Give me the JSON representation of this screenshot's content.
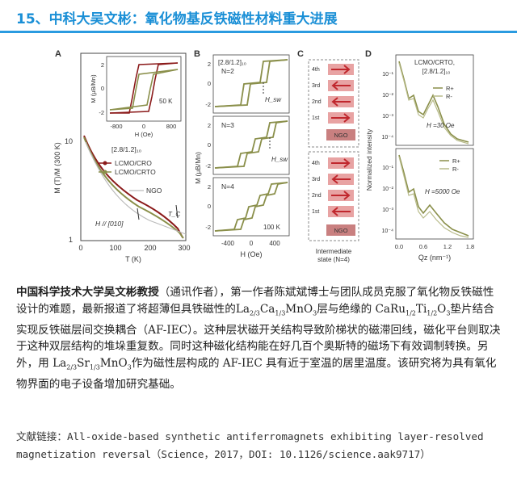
{
  "header": {
    "title": "15、中科大吴文彬：氧化物基反铁磁性材料重大进展",
    "accent_color": "#1a8fd6"
  },
  "figure": {
    "panel_a": {
      "label": "A",
      "ylabel": "M (T)/M (300 K)",
      "xlabel": "T (K)",
      "xticks": [
        "0",
        "100",
        "200",
        "300"
      ],
      "yticks": [
        "10",
        "1"
      ],
      "legend_title": "[2.8/1.2]₁₀",
      "legend": [
        "LCMO/CRO",
        "LCMO/CRTO",
        "NGO"
      ],
      "field_note": "H // [010]",
      "tc_label": "T_C",
      "inset": {
        "ylabel": "M (μB/Mn)",
        "xlabel": "H (Oe)",
        "xticks": [
          "-800",
          "0",
          "800"
        ],
        "yticks": [
          "2",
          "0",
          "-2"
        ],
        "temp": "50 K"
      }
    },
    "panel_b": {
      "label": "B",
      "title": "[2.8/1.2]₁₀",
      "ylabel": "M (μB/Mn)",
      "xlabel": "H (Oe)",
      "xticks": [
        "-400",
        "0",
        "400"
      ],
      "yticks": [
        "2",
        "0",
        "-2"
      ],
      "subpanels": [
        "N=2",
        "N=3",
        "N=4"
      ],
      "hsw_label": "H_sw",
      "temp": "100 K"
    },
    "panel_c": {
      "label": "C",
      "layers": [
        "4th",
        "3rd",
        "2nd",
        "1st"
      ],
      "substrate": "NGO",
      "caption_1": "Intermediate",
      "caption_2": "state (N=4)"
    },
    "panel_d": {
      "label": "D",
      "sample_1": "LCMO/CRTO,",
      "sample_2": "[2.8/1.2]₁₀",
      "ylabel": "Normalized intensity",
      "xlabel": "Qz (nm⁻¹)",
      "xticks": [
        "0.0",
        "0.6",
        "1.2",
        "1.8"
      ],
      "yticks_top": [
        "10⁻¹",
        "10⁻²",
        "10⁻³",
        "10⁻⁴"
      ],
      "yticks_bottom": [
        "10⁻¹",
        "10⁻²",
        "10⁻³",
        "10⁻⁴"
      ],
      "legend": [
        "R+",
        "R-"
      ],
      "field_top": "H =30 Oe",
      "field_bottom": "H =5000 Oe"
    }
  },
  "body": {
    "lead": "中国科学技术大学吴文彬教授",
    "paren": "（通讯作者）",
    "part1": "，第一作者陈斌斌博士与团队成员克服了氧化物反铁磁性设计的难题，最新报道了将超薄但具铁磁性的La",
    "sub1": "2/3",
    "part2": "Ca",
    "sub2": "1/3",
    "part3": "MnO",
    "sub3": "3",
    "part4": "层与绝缘的 CaRu",
    "sub4": "1/2",
    "part5": "Ti",
    "sub5": "1/2",
    "part6": "O",
    "sub6": "3",
    "part7": "垫片结合实现反铁磁层间交换耦合（AF-IEC）。这种层状磁开关结构导致阶梯状的磁滞回线，磁化平台则取决于这种双层结构的堆垛重复数。同时这种磁化结构能在好几百个奥斯特的磁场下有效调制转换。另外，用 La",
    "sub7": "2/3",
    "part8": "Sr",
    "sub8": "1/3",
    "part9": "MnO",
    "sub9": "3",
    "part10": "作为磁性层构成的 AF-IEC 具有近于室温的居里温度。该研究将为具有氧化物界面的电子设备增加研究基础。"
  },
  "reference": {
    "text": "文献链接：All-oxide‐based synthetic antiferromagnets exhibiting layer-resolved magnetization reversal（Science，2017，DOI: 10.1126/science.aak9717）"
  }
}
